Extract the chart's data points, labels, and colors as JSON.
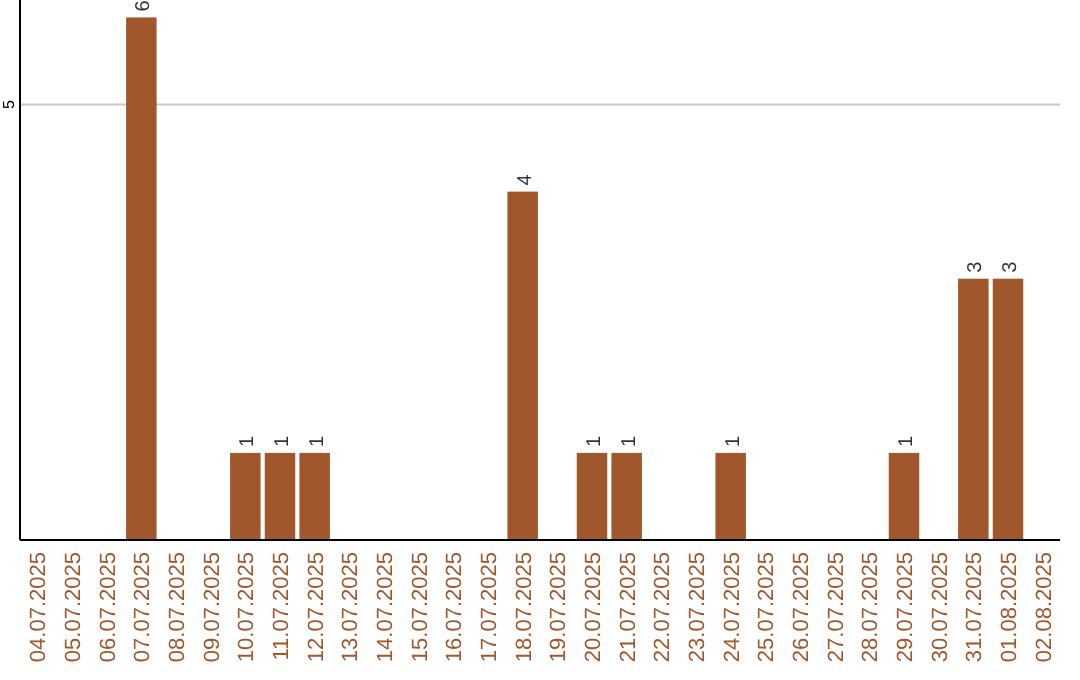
{
  "chart_data": {
    "type": "bar",
    "categories": [
      "04.07.2025",
      "05.07.2025",
      "06.07.2025",
      "07.07.2025",
      "08.07.2025",
      "09.07.2025",
      "10.07.2025",
      "11.07.2025",
      "12.07.2025",
      "13.07.2025",
      "14.07.2025",
      "15.07.2025",
      "16.07.2025",
      "17.07.2025",
      "18.07.2025",
      "19.07.2025",
      "20.07.2025",
      "21.07.2025",
      "22.07.2025",
      "23.07.2025",
      "24.07.2025",
      "25.07.2025",
      "26.07.2025",
      "27.07.2025",
      "28.07.2025",
      "29.07.2025",
      "30.07.2025",
      "31.07.2025",
      "01.08.2025",
      "02.08.2025"
    ],
    "values": [
      0,
      0,
      0,
      6,
      0,
      0,
      1,
      1,
      1,
      0,
      0,
      0,
      0,
      0,
      4,
      0,
      1,
      1,
      0,
      0,
      1,
      0,
      0,
      0,
      0,
      1,
      0,
      3,
      3,
      0
    ],
    "value_labels": [
      null,
      null,
      null,
      "6",
      null,
      null,
      "1",
      "1",
      "1",
      null,
      null,
      null,
      null,
      null,
      "4",
      null,
      "1",
      "1",
      null,
      null,
      "1",
      null,
      null,
      null,
      null,
      "1",
      null,
      "3",
      "3",
      null
    ],
    "color": "#a0572b",
    "ylim": [
      0,
      6.2
    ],
    "yticks": [
      5
    ],
    "grid": "y"
  }
}
